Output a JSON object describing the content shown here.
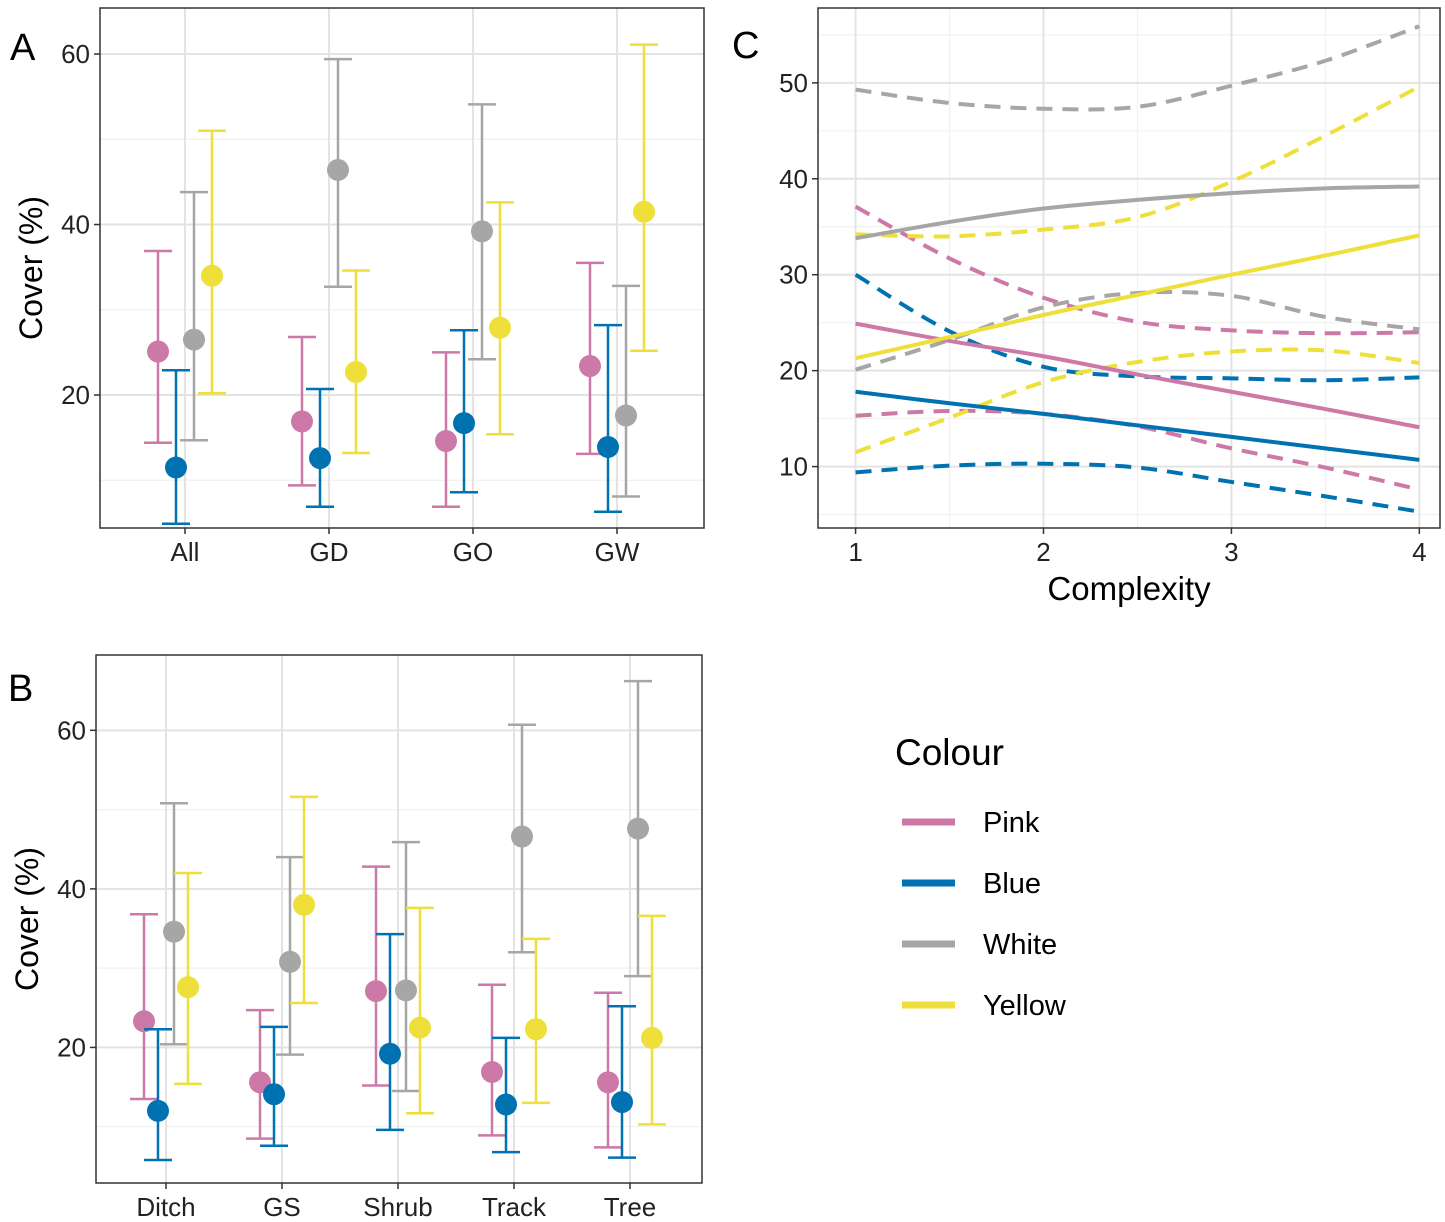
{
  "colors": {
    "Pink": "#CC79A7",
    "Blue": "#0072B2",
    "White": "#A6A6A6",
    "Yellow": "#EEDF3A"
  },
  "legend": {
    "title": "Colour",
    "items": [
      "Pink",
      "Blue",
      "White",
      "Yellow"
    ]
  },
  "chart_data": [
    {
      "panel": "A",
      "type": "scatter",
      "error_bars": true,
      "categories": [
        "All",
        "GD",
        "GO",
        "GW"
      ],
      "ylabel": "Cover (%)",
      "xlabel": "",
      "ylim": [
        4.4,
        65.4
      ],
      "yticks": [
        20,
        40,
        60
      ],
      "grid": true,
      "series": [
        {
          "name": "Pink",
          "values": [
            25.1,
            16.9,
            14.6,
            23.4
          ],
          "lower": [
            14.4,
            9.4,
            6.9,
            13.1
          ],
          "upper": [
            36.9,
            26.8,
            25.0,
            35.5
          ]
        },
        {
          "name": "Blue",
          "values": [
            11.5,
            12.6,
            16.7,
            13.9
          ],
          "lower": [
            4.9,
            6.9,
            8.6,
            6.3
          ],
          "upper": [
            22.9,
            20.7,
            27.6,
            28.2
          ]
        },
        {
          "name": "White",
          "values": [
            26.5,
            46.4,
            39.2,
            17.6
          ],
          "lower": [
            14.7,
            32.7,
            24.2,
            8.1
          ],
          "upper": [
            43.8,
            59.4,
            54.1,
            32.8
          ]
        },
        {
          "name": "Yellow",
          "values": [
            34.0,
            22.7,
            27.9,
            41.5
          ],
          "lower": [
            20.2,
            13.2,
            15.4,
            25.2
          ],
          "upper": [
            51.0,
            34.6,
            42.6,
            61.1
          ]
        }
      ]
    },
    {
      "panel": "B",
      "type": "scatter",
      "error_bars": true,
      "categories": [
        "Ditch",
        "GS",
        "Shrub",
        "Track",
        "Tree"
      ],
      "ylabel": "Cover (%)",
      "xlabel": "",
      "ylim": [
        2.9,
        69.5
      ],
      "yticks": [
        20,
        40,
        60
      ],
      "grid": true,
      "series": [
        {
          "name": "Pink",
          "values": [
            23.3,
            15.6,
            27.1,
            16.9,
            15.6
          ],
          "lower": [
            13.5,
            8.5,
            15.2,
            8.9,
            7.4
          ],
          "upper": [
            36.8,
            24.7,
            42.8,
            27.9,
            26.9
          ]
        },
        {
          "name": "Blue",
          "values": [
            12.0,
            14.1,
            19.2,
            12.8,
            13.1
          ],
          "lower": [
            5.8,
            7.6,
            9.6,
            6.8,
            6.1
          ],
          "upper": [
            22.3,
            22.6,
            34.3,
            21.2,
            25.2
          ]
        },
        {
          "name": "White",
          "values": [
            34.6,
            30.8,
            27.2,
            46.6,
            47.6
          ],
          "lower": [
            20.4,
            19.1,
            14.5,
            32.0,
            29.0
          ],
          "upper": [
            50.8,
            44.0,
            45.9,
            60.7,
            66.2
          ]
        },
        {
          "name": "Yellow",
          "values": [
            27.6,
            38.0,
            22.5,
            22.3,
            21.2
          ],
          "lower": [
            15.4,
            25.6,
            11.7,
            13.0,
            10.3
          ],
          "upper": [
            42.0,
            51.6,
            37.6,
            33.7,
            36.6
          ]
        }
      ]
    },
    {
      "panel": "C",
      "type": "line",
      "xlabel": "Complexity",
      "ylabel": "",
      "xlim": [
        0.8,
        4.11
      ],
      "ylim": [
        3.6,
        57.8
      ],
      "xticks": [
        1,
        2,
        3,
        4
      ],
      "yticks": [
        10,
        20,
        30,
        40,
        50
      ],
      "grid": true,
      "x": [
        1,
        1.5,
        2,
        2.5,
        3,
        3.5,
        4
      ],
      "series": [
        {
          "name": "Pink",
          "fit": [
            24.9,
            23.1,
            21.5,
            19.6,
            17.8,
            16.0,
            14.1
          ],
          "lower": [
            15.3,
            15.8,
            15.5,
            14.2,
            11.9,
            9.9,
            7.6
          ],
          "upper": [
            37.1,
            31.7,
            27.6,
            25.1,
            24.2,
            23.9,
            24.0
          ]
        },
        {
          "name": "Blue",
          "fit": [
            17.8,
            16.6,
            15.5,
            14.3,
            13.1,
            11.9,
            10.7
          ],
          "lower": [
            9.4,
            10.1,
            10.3,
            9.9,
            8.4,
            6.9,
            5.3
          ],
          "upper": [
            30.0,
            24.1,
            20.4,
            19.4,
            19.2,
            19.0,
            19.3
          ]
        },
        {
          "name": "White",
          "fit": [
            33.8,
            35.5,
            36.9,
            37.8,
            38.5,
            39.0,
            39.2
          ],
          "lower": [
            20.1,
            23.2,
            26.6,
            28.1,
            27.8,
            25.6,
            24.3
          ],
          "upper": [
            49.3,
            47.9,
            47.3,
            47.5,
            49.7,
            52.3,
            55.9
          ]
        },
        {
          "name": "White",
          "fit": [
            21.3,
            23.5,
            25.8,
            27.9,
            30.0,
            32.0,
            34.1
          ],
          "lower": [
            11.5,
            15.1,
            18.8,
            20.9,
            22.0,
            22.1,
            20.8
          ],
          "upper": [
            34.2,
            34.0,
            34.7,
            36.0,
            39.7,
            44.5,
            49.6
          ]
        }
      ]
    }
  ],
  "panel_labels": [
    "A",
    "B",
    "C"
  ]
}
